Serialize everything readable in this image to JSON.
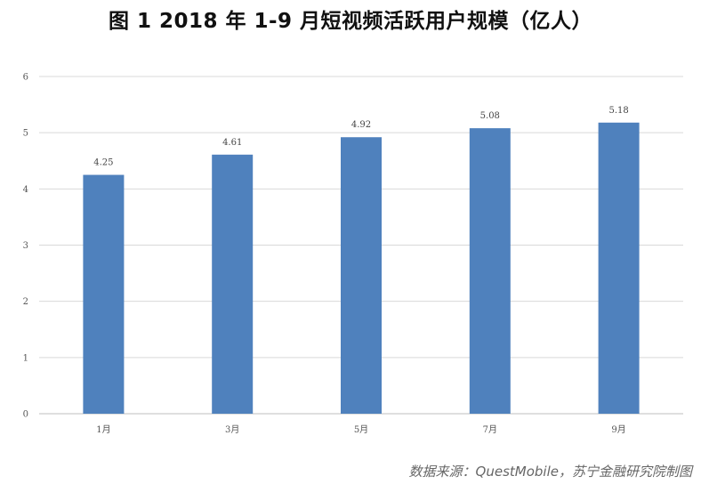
{
  "chart_data": {
    "type": "bar",
    "title": "图 1 2018 年 1-9 月短视频活跃用户规模（亿人）",
    "source": "数据来源：QuestMobile，苏宁金融研究院制图",
    "categories": [
      "1月",
      "3月",
      "5月",
      "7月",
      "9月"
    ],
    "values": [
      4.25,
      4.61,
      4.92,
      5.08,
      5.18
    ],
    "value_labels": [
      "4.25",
      "4.61",
      "4.92",
      "5.08",
      "5.18"
    ],
    "y_ticks": [
      "0",
      "1",
      "2",
      "3",
      "4",
      "5",
      "6"
    ],
    "ylim": [
      0,
      6
    ],
    "grid": true,
    "legend": "none",
    "bar_color": "#4F81BD",
    "grid_color": "#D9D9D9"
  }
}
